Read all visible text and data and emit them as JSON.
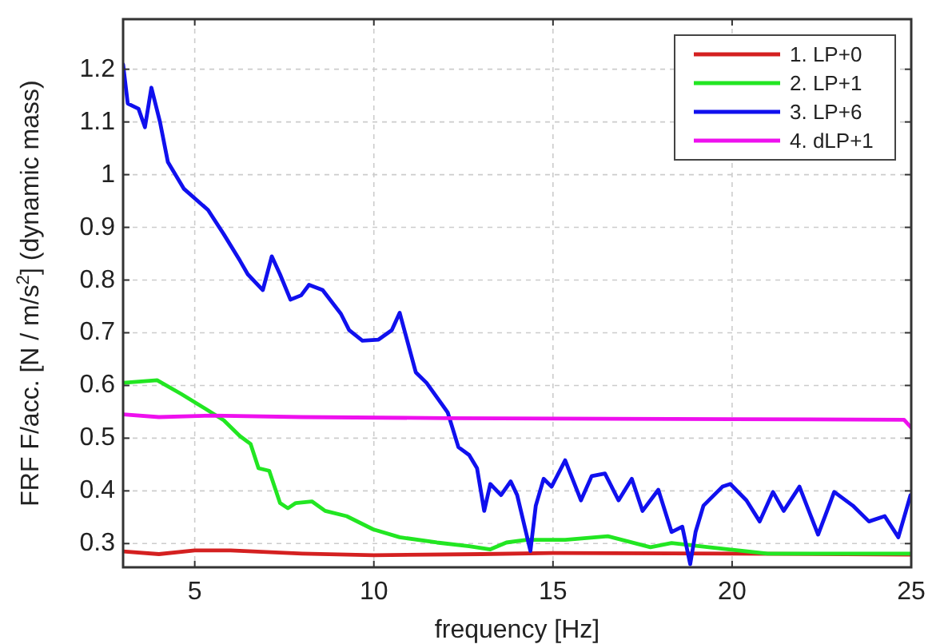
{
  "chart_data": {
    "type": "line",
    "xlabel": "frequency [Hz]",
    "ylabel": "FRF F/acc. [N / m/s$^{2}$] (dynamic mass)",
    "xlim": [
      3,
      25
    ],
    "xticks": [
      5,
      10,
      15,
      20,
      25
    ],
    "ylim": [
      0.255,
      1.295
    ],
    "yticks": [
      0.3,
      0.4,
      0.5,
      0.6,
      0.7,
      0.8,
      0.9,
      1,
      1.1,
      1.2
    ],
    "grid": true,
    "legend": "top right",
    "line_style": "solid",
    "marker": "none",
    "series": [
      {
        "name": "1. LP+0",
        "color": "#d42020",
        "x": [
          3,
          4,
          5,
          6,
          8,
          10,
          13,
          15,
          20,
          25
        ],
        "values": [
          0.285,
          0.28,
          0.287,
          0.287,
          0.281,
          0.278,
          0.28,
          0.282,
          0.281,
          0.279
        ]
      },
      {
        "name": "2. LP+1",
        "color": "#22e622",
        "x": [
          3,
          3.95,
          4.62,
          5.22,
          5.81,
          6.26,
          6.56,
          6.78,
          7.08,
          7.38,
          7.6,
          7.82,
          8.27,
          8.64,
          9.24,
          9.98,
          10.72,
          11.76,
          12.66,
          13.25,
          13.7,
          14.26,
          15.34,
          16.53,
          17.72,
          18.31,
          19.35,
          20.99,
          22.78,
          25
        ],
        "values": [
          0.605,
          0.61,
          0.584,
          0.559,
          0.534,
          0.504,
          0.489,
          0.443,
          0.438,
          0.377,
          0.367,
          0.377,
          0.38,
          0.362,
          0.352,
          0.327,
          0.312,
          0.302,
          0.295,
          0.289,
          0.302,
          0.307,
          0.307,
          0.314,
          0.293,
          0.301,
          0.293,
          0.281,
          0.281,
          0.281
        ]
      },
      {
        "name": "3. LP+6",
        "color": "#1010ee",
        "x": [
          3,
          3.13,
          3.43,
          3.61,
          3.79,
          4.03,
          4.25,
          4.7,
          5.37,
          5.81,
          6.26,
          6.48,
          6.9,
          7.15,
          7.38,
          7.67,
          7.97,
          8.19,
          8.57,
          9.08,
          9.31,
          9.68,
          10.13,
          10.5,
          10.72,
          11.17,
          11.47,
          12.06,
          12.36,
          12.66,
          12.88,
          13.08,
          13.25,
          13.55,
          13.82,
          14.0,
          14.37,
          14.52,
          14.74,
          14.96,
          15.34,
          15.78,
          16.08,
          16.45,
          16.83,
          17.2,
          17.5,
          17.94,
          18.31,
          18.61,
          18.83,
          18.98,
          19.2,
          19.73,
          19.95,
          20.4,
          20.77,
          21.14,
          21.44,
          21.88,
          22.4,
          22.85,
          23.37,
          23.82,
          24.26,
          24.64,
          24.98
        ],
        "values": [
          1.209,
          1.135,
          1.125,
          1.09,
          1.165,
          1.1,
          1.024,
          0.973,
          0.933,
          0.887,
          0.837,
          0.811,
          0.781,
          0.845,
          0.811,
          0.763,
          0.771,
          0.791,
          0.781,
          0.736,
          0.705,
          0.685,
          0.687,
          0.705,
          0.738,
          0.625,
          0.605,
          0.549,
          0.483,
          0.468,
          0.443,
          0.362,
          0.413,
          0.392,
          0.418,
          0.392,
          0.286,
          0.372,
          0.423,
          0.408,
          0.458,
          0.382,
          0.428,
          0.433,
          0.382,
          0.423,
          0.362,
          0.402,
          0.322,
          0.332,
          0.261,
          0.322,
          0.372,
          0.408,
          0.413,
          0.382,
          0.342,
          0.398,
          0.362,
          0.408,
          0.317,
          0.398,
          0.372,
          0.342,
          0.352,
          0.312,
          0.392
        ]
      },
      {
        "name": "4. dLP+1",
        "color": "#ee10ee",
        "x": [
          3,
          4,
          5.5,
          8,
          12,
          20,
          24.8,
          25
        ],
        "values": [
          0.545,
          0.54,
          0.543,
          0.54,
          0.538,
          0.536,
          0.535,
          0.52
        ]
      }
    ]
  }
}
